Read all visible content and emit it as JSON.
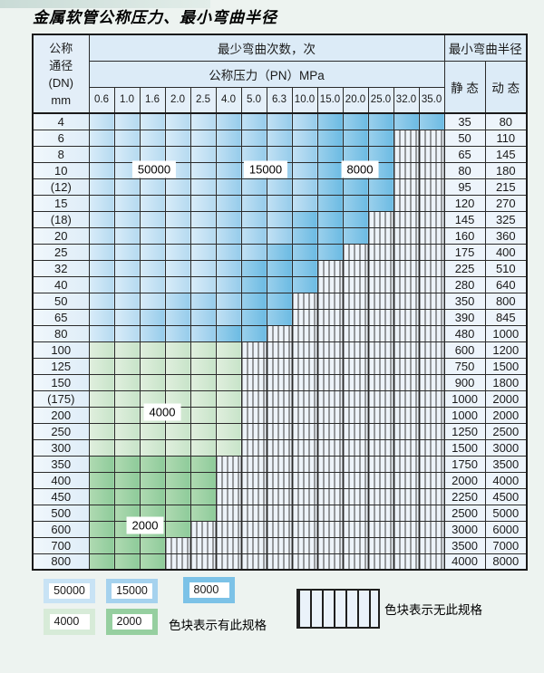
{
  "title": "金属软管公称压力、最小弯曲半径",
  "table": {
    "header": {
      "dn_lines": [
        "公称",
        "通径",
        "(DN)",
        "mm"
      ],
      "cycles_label": "最少弯曲次数，次",
      "pressure_label": "公称压力（PN）MPa",
      "radius_label": "最小弯曲半径",
      "static_label": "静 态",
      "dynamic_label": "动 态",
      "pressures": [
        "0.6",
        "1.0",
        "1.6",
        "2.0",
        "2.5",
        "4.0",
        "5.0",
        "6.3",
        "10.0",
        "15.0",
        "20.0",
        "25.0",
        "32.0",
        "35.0"
      ]
    },
    "cell_legend_values": {
      "available": [
        "50000",
        "15000",
        "8000",
        "4000",
        "2000"
      ],
      "unavailable": "x"
    },
    "rows": [
      {
        "dn": "4",
        "static": "35",
        "dynamic": "80",
        "cells": [
          "50000",
          "50000",
          "50000",
          "50000",
          "50000",
          "15000",
          "15000",
          "15000",
          "15000",
          "8000",
          "8000",
          "8000",
          "8000",
          "8000"
        ]
      },
      {
        "dn": "6",
        "static": "50",
        "dynamic": "110",
        "cells": [
          "50000",
          "50000",
          "50000",
          "50000",
          "50000",
          "15000",
          "15000",
          "15000",
          "15000",
          "8000",
          "8000",
          "8000",
          "x",
          "x"
        ]
      },
      {
        "dn": "8",
        "static": "65",
        "dynamic": "145",
        "cells": [
          "50000",
          "50000",
          "50000",
          "50000",
          "50000",
          "15000",
          "15000",
          "15000",
          "15000",
          "8000",
          "8000",
          "8000",
          "x",
          "x"
        ]
      },
      {
        "dn": "10",
        "static": "80",
        "dynamic": "180",
        "cells": [
          "50000",
          "50000",
          "50000",
          "50000",
          "50000",
          "15000",
          "15000",
          "15000",
          "15000",
          "8000",
          "8000",
          "8000",
          "x",
          "x"
        ]
      },
      {
        "dn": "(12)",
        "static": "95",
        "dynamic": "215",
        "cells": [
          "50000",
          "50000",
          "50000",
          "50000",
          "50000",
          "15000",
          "15000",
          "15000",
          "15000",
          "8000",
          "8000",
          "8000",
          "x",
          "x"
        ]
      },
      {
        "dn": "15",
        "static": "120",
        "dynamic": "270",
        "cells": [
          "50000",
          "50000",
          "50000",
          "50000",
          "50000",
          "15000",
          "15000",
          "15000",
          "15000",
          "8000",
          "8000",
          "8000",
          "x",
          "x"
        ]
      },
      {
        "dn": "(18)",
        "static": "145",
        "dynamic": "325",
        "cells": [
          "50000",
          "50000",
          "50000",
          "50000",
          "50000",
          "15000",
          "15000",
          "15000",
          "8000",
          "8000",
          "8000",
          "x",
          "x",
          "x"
        ]
      },
      {
        "dn": "20",
        "static": "160",
        "dynamic": "360",
        "cells": [
          "50000",
          "50000",
          "50000",
          "50000",
          "50000",
          "15000",
          "15000",
          "15000",
          "8000",
          "8000",
          "8000",
          "x",
          "x",
          "x"
        ]
      },
      {
        "dn": "25",
        "static": "175",
        "dynamic": "400",
        "cells": [
          "50000",
          "50000",
          "50000",
          "50000",
          "50000",
          "15000",
          "15000",
          "8000",
          "8000",
          "8000",
          "x",
          "x",
          "x",
          "x"
        ]
      },
      {
        "dn": "32",
        "static": "225",
        "dynamic": "510",
        "cells": [
          "50000",
          "50000",
          "50000",
          "50000",
          "50000",
          "15000",
          "8000",
          "8000",
          "8000",
          "x",
          "x",
          "x",
          "x",
          "x"
        ]
      },
      {
        "dn": "40",
        "static": "280",
        "dynamic": "640",
        "cells": [
          "50000",
          "50000",
          "50000",
          "50000",
          "50000",
          "15000",
          "8000",
          "8000",
          "8000",
          "x",
          "x",
          "x",
          "x",
          "x"
        ]
      },
      {
        "dn": "50",
        "static": "350",
        "dynamic": "800",
        "cells": [
          "50000",
          "50000",
          "50000",
          "15000",
          "15000",
          "15000",
          "8000",
          "8000",
          "x",
          "x",
          "x",
          "x",
          "x",
          "x"
        ]
      },
      {
        "dn": "65",
        "static": "390",
        "dynamic": "845",
        "cells": [
          "50000",
          "50000",
          "15000",
          "15000",
          "15000",
          "15000",
          "8000",
          "8000",
          "x",
          "x",
          "x",
          "x",
          "x",
          "x"
        ]
      },
      {
        "dn": "80",
        "static": "480",
        "dynamic": "1000",
        "cells": [
          "50000",
          "50000",
          "15000",
          "15000",
          "15000",
          "8000",
          "8000",
          "x",
          "x",
          "x",
          "x",
          "x",
          "x",
          "x"
        ]
      },
      {
        "dn": "100",
        "static": "600",
        "dynamic": "1200",
        "cells": [
          "4000",
          "4000",
          "4000",
          "4000",
          "4000",
          "4000",
          "x",
          "x",
          "x",
          "x",
          "x",
          "x",
          "x",
          "x"
        ]
      },
      {
        "dn": "125",
        "static": "750",
        "dynamic": "1500",
        "cells": [
          "4000",
          "4000",
          "4000",
          "4000",
          "4000",
          "4000",
          "x",
          "x",
          "x",
          "x",
          "x",
          "x",
          "x",
          "x"
        ]
      },
      {
        "dn": "150",
        "static": "900",
        "dynamic": "1800",
        "cells": [
          "4000",
          "4000",
          "4000",
          "4000",
          "4000",
          "4000",
          "x",
          "x",
          "x",
          "x",
          "x",
          "x",
          "x",
          "x"
        ]
      },
      {
        "dn": "(175)",
        "static": "1000",
        "dynamic": "2000",
        "cells": [
          "4000",
          "4000",
          "4000",
          "4000",
          "4000",
          "4000",
          "x",
          "x",
          "x",
          "x",
          "x",
          "x",
          "x",
          "x"
        ]
      },
      {
        "dn": "200",
        "static": "1000",
        "dynamic": "2000",
        "cells": [
          "4000",
          "4000",
          "4000",
          "4000",
          "4000",
          "4000",
          "x",
          "x",
          "x",
          "x",
          "x",
          "x",
          "x",
          "x"
        ]
      },
      {
        "dn": "250",
        "static": "1250",
        "dynamic": "2500",
        "cells": [
          "4000",
          "4000",
          "4000",
          "4000",
          "4000",
          "4000",
          "x",
          "x",
          "x",
          "x",
          "x",
          "x",
          "x",
          "x"
        ]
      },
      {
        "dn": "300",
        "static": "1500",
        "dynamic": "3000",
        "cells": [
          "4000",
          "4000",
          "4000",
          "4000",
          "4000",
          "4000",
          "x",
          "x",
          "x",
          "x",
          "x",
          "x",
          "x",
          "x"
        ]
      },
      {
        "dn": "350",
        "static": "1750",
        "dynamic": "3500",
        "cells": [
          "2000",
          "2000",
          "2000",
          "2000",
          "2000",
          "x",
          "x",
          "x",
          "x",
          "x",
          "x",
          "x",
          "x",
          "x"
        ]
      },
      {
        "dn": "400",
        "static": "2000",
        "dynamic": "4000",
        "cells": [
          "2000",
          "2000",
          "2000",
          "2000",
          "2000",
          "x",
          "x",
          "x",
          "x",
          "x",
          "x",
          "x",
          "x",
          "x"
        ]
      },
      {
        "dn": "450",
        "static": "2250",
        "dynamic": "4500",
        "cells": [
          "2000",
          "2000",
          "2000",
          "2000",
          "2000",
          "x",
          "x",
          "x",
          "x",
          "x",
          "x",
          "x",
          "x",
          "x"
        ]
      },
      {
        "dn": "500",
        "static": "2500",
        "dynamic": "5000",
        "cells": [
          "2000",
          "2000",
          "2000",
          "2000",
          "2000",
          "x",
          "x",
          "x",
          "x",
          "x",
          "x",
          "x",
          "x",
          "x"
        ]
      },
      {
        "dn": "600",
        "static": "3000",
        "dynamic": "6000",
        "cells": [
          "2000",
          "2000",
          "2000",
          "2000",
          "x",
          "x",
          "x",
          "x",
          "x",
          "x",
          "x",
          "x",
          "x",
          "x"
        ]
      },
      {
        "dn": "700",
        "static": "3500",
        "dynamic": "7000",
        "cells": [
          "2000",
          "2000",
          "2000",
          "x",
          "x",
          "x",
          "x",
          "x",
          "x",
          "x",
          "x",
          "x",
          "x",
          "x"
        ]
      },
      {
        "dn": "800",
        "static": "4000",
        "dynamic": "8000",
        "cells": [
          "2000",
          "2000",
          "2000",
          "x",
          "x",
          "x",
          "x",
          "x",
          "x",
          "x",
          "x",
          "x",
          "x",
          "x"
        ]
      }
    ]
  },
  "overlays": [
    {
      "text": "50000"
    },
    {
      "text": "15000"
    },
    {
      "text": "8000"
    },
    {
      "text": "4000"
    },
    {
      "text": "2000"
    }
  ],
  "legend": {
    "has_spec_text": "色块表示有此规格",
    "no_spec_text": "色块表示无此规格",
    "swatches": [
      {
        "label": "50000",
        "color": "#c8e3f5"
      },
      {
        "label": "15000",
        "color": "#a5d2ee"
      },
      {
        "label": "8000",
        "color": "#7cc2e7"
      },
      {
        "label": "4000",
        "color": "#d7ebd8"
      },
      {
        "label": "2000",
        "color": "#96cfa0"
      }
    ]
  }
}
